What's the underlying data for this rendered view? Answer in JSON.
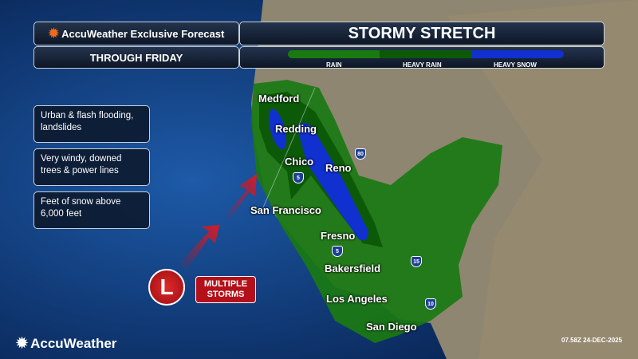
{
  "header": {
    "brand_title": "AccuWeather Exclusive Forecast",
    "title": "STORMY STRETCH",
    "subtitle": "THROUGH FRIDAY"
  },
  "legend": [
    {
      "label": "RAIN",
      "color": "#1a7a12"
    },
    {
      "label": "HEAVY RAIN",
      "color": "#0c5a08"
    },
    {
      "label": "HEAVY SNOW",
      "color": "#1030d0"
    }
  ],
  "impacts": [
    "Urban & flash flooding, landslides",
    "Very windy, downed trees & power lines",
    "Feet of snow above 6,000 feet"
  ],
  "cities": [
    {
      "name": "Medford"
    },
    {
      "name": "Redding"
    },
    {
      "name": "Chico"
    },
    {
      "name": "Reno"
    },
    {
      "name": "San Francisco"
    },
    {
      "name": "Fresno"
    },
    {
      "name": "Bakersfield"
    },
    {
      "name": "Los Angeles"
    },
    {
      "name": "San Diego"
    }
  ],
  "interstates": [
    "80",
    "5",
    "5",
    "15",
    "10"
  ],
  "storm": {
    "symbol": "L",
    "label": "MULTIPLE STORMS"
  },
  "logo": "AccuWeather",
  "timestamp": "07.58Z 24-DEC-2025"
}
